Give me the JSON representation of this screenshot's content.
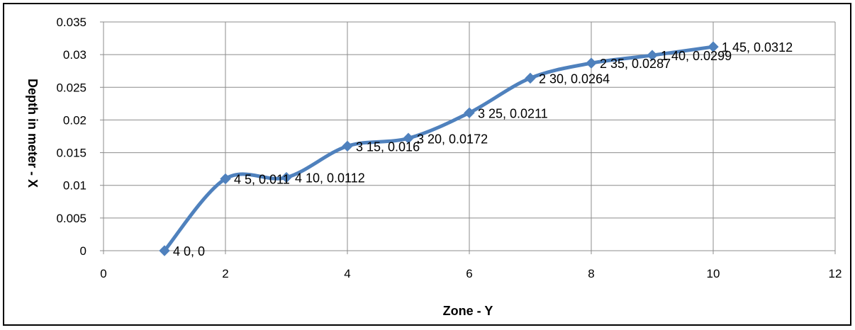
{
  "chart_data": {
    "type": "scatter",
    "smooth_line": true,
    "title": "",
    "xlabel": "Zone - Y",
    "ylabel": "Depth in meter - X",
    "xlim": [
      0,
      12
    ],
    "ylim": [
      0,
      0.035
    ],
    "x_ticks": [
      "0",
      "2",
      "4",
      "6",
      "8",
      "10",
      "12"
    ],
    "y_ticks": [
      "0",
      "0.005",
      "0.01",
      "0.015",
      "0.02",
      "0.025",
      "0.03",
      "0.035"
    ],
    "grid": true,
    "legend": "none",
    "line_color": "#4F81BD",
    "marker_color": "#4F81BD",
    "marker": "diamond",
    "points": [
      {
        "x": 1,
        "y": 0,
        "label": "4 0, 0"
      },
      {
        "x": 2,
        "y": 0.011,
        "label": "4 5, 0.011"
      },
      {
        "x": 3,
        "y": 0.0112,
        "label": "4 10, 0.0112"
      },
      {
        "x": 4,
        "y": 0.016,
        "label": "3 15, 0.016"
      },
      {
        "x": 5,
        "y": 0.0172,
        "label": "3 20, 0.0172"
      },
      {
        "x": 6,
        "y": 0.0211,
        "label": "3 25, 0.0211"
      },
      {
        "x": 7,
        "y": 0.0264,
        "label": "2 30, 0.0264"
      },
      {
        "x": 8,
        "y": 0.0287,
        "label": "2 35, 0.0287"
      },
      {
        "x": 9,
        "y": 0.0299,
        "label": "1 40, 0.0299"
      },
      {
        "x": 10,
        "y": 0.0312,
        "label": "1 45, 0.0312"
      }
    ]
  }
}
